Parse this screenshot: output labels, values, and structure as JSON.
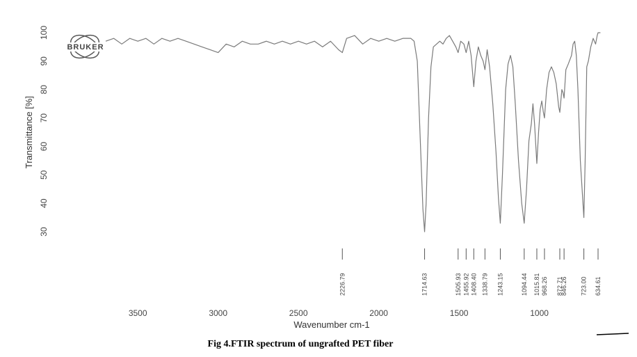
{
  "chart_data": {
    "type": "line",
    "logo_text": "BRUKER",
    "x_label": "Wavenumber cm-1",
    "y_label": "Transmittance [%]",
    "caption": "Fig 4.FTIR spectrum of ungrafted PET fiber",
    "xlim": [
      3700,
      600
    ],
    "ylim": [
      27,
      102
    ],
    "xticks": [
      3500,
      3000,
      2500,
      2000,
      1500,
      1000
    ],
    "yticks": [
      30,
      40,
      50,
      60,
      70,
      80,
      90,
      100
    ],
    "x_reversed": true,
    "color": "#7a7a7a",
    "x": [
      3700,
      3650,
      3600,
      3550,
      3500,
      3450,
      3400,
      3350,
      3300,
      3250,
      3200,
      3150,
      3100,
      3050,
      3000,
      2950,
      2900,
      2850,
      2800,
      2750,
      2700,
      2650,
      2600,
      2550,
      2500,
      2450,
      2400,
      2350,
      2300,
      2250,
      2226.79,
      2200,
      2150,
      2100,
      2050,
      2000,
      1950,
      1900,
      1850,
      1800,
      1780,
      1760,
      1740,
      1725,
      1714.63,
      1705,
      1690,
      1675,
      1660,
      1640,
      1620,
      1600,
      1580,
      1560,
      1540,
      1520,
      1505.93,
      1490,
      1470,
      1455.92,
      1440,
      1425,
      1408.4,
      1395,
      1380,
      1365,
      1350,
      1338.79,
      1325,
      1310,
      1290,
      1270,
      1255,
      1243.15,
      1230,
      1210,
      1195,
      1180,
      1165,
      1150,
      1130,
      1110,
      1094.44,
      1080,
      1065,
      1050,
      1040,
      1030,
      1015.81,
      1005,
      995,
      985,
      975,
      968.26,
      955,
      940,
      925,
      910,
      895,
      880,
      872.71,
      860,
      853,
      846.26,
      835,
      820,
      800,
      790,
      780,
      770,
      760,
      745,
      723,
      715,
      705,
      695,
      680,
      665,
      650,
      640,
      634.61,
      620
    ],
    "values": [
      97,
      98,
      96,
      98,
      97,
      98,
      96,
      98,
      97,
      98,
      97,
      96,
      95,
      94,
      93,
      96,
      95,
      97,
      96,
      96,
      97,
      96,
      97,
      96,
      97,
      96,
      97,
      95,
      97,
      94,
      93,
      98,
      99,
      96,
      98,
      97,
      98,
      97,
      98,
      98,
      97,
      90,
      60,
      38,
      30,
      40,
      70,
      88,
      95,
      96,
      97,
      96,
      98,
      99,
      97,
      95,
      93,
      97,
      96,
      93,
      97,
      92,
      81,
      90,
      95,
      92,
      90,
      87,
      94,
      88,
      75,
      58,
      42,
      33,
      50,
      80,
      89,
      92,
      88,
      75,
      55,
      40,
      33,
      45,
      62,
      68,
      75,
      68,
      54,
      65,
      73,
      76,
      72,
      70,
      80,
      86,
      88,
      86,
      82,
      74,
      72,
      80,
      79,
      77,
      87,
      89,
      92,
      96,
      97,
      92,
      80,
      55,
      35,
      55,
      88,
      90,
      95,
      98,
      96,
      99,
      100,
      100
    ],
    "peaks": [
      2226.79,
      1714.63,
      1505.93,
      1455.92,
      {
        "value": 1408.4,
        "label": "1408.40"
      },
      1338.79,
      1243.15,
      1094.44,
      1015.81,
      968.26,
      872.71,
      846.26,
      {
        "value": 723,
        "label": "723.00"
      },
      634.61
    ]
  }
}
